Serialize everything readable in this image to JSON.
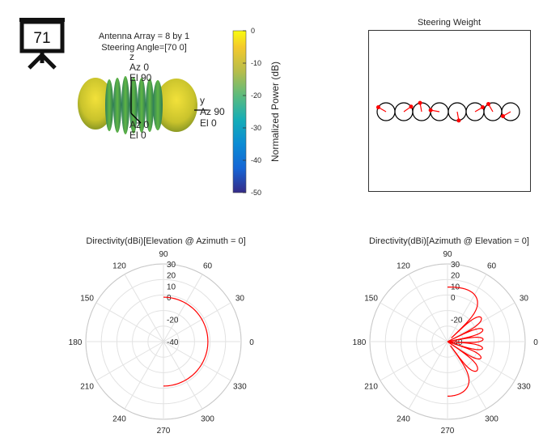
{
  "badge": {
    "number": "71",
    "icon": "presentation-board-icon"
  },
  "array_info": {
    "line1": "Antenna Array = 8 by 1",
    "line2": "Steering Angle=[70 0]"
  },
  "pattern3d": {
    "z_label": "z",
    "z_az": "Az 0",
    "z_el": "El 90",
    "y_label": "y",
    "y_az": "Az 90",
    "y_el": "El 0",
    "x_az": "Az 0",
    "x_el": "El 0"
  },
  "colorbar": {
    "label": "Normalized Power (dB)",
    "ticks": [
      "0",
      "-10",
      "-20",
      "-30",
      "-40",
      "-50"
    ]
  },
  "steering": {
    "title": "Steering Weight",
    "element_count": 8,
    "phases_deg": [
      150,
      35,
      100,
      170,
      280,
      30,
      120,
      210
    ]
  },
  "chart_data": [
    {
      "type": "polar",
      "title": "Directivity(dBi)[Elevation @ Azimuth = 0]",
      "angle_ticks": [
        "0",
        "30",
        "60",
        "90",
        "120",
        "150",
        "180",
        "210",
        "240",
        "270",
        "300",
        "330"
      ],
      "r_ticks": [
        "30",
        "20",
        "10",
        "0",
        "-20",
        "-40"
      ],
      "r_tick_values": [
        30,
        20,
        10,
        0,
        -20,
        -40
      ],
      "series": [
        {
          "theta_deg": [
            -90,
            -60,
            -30,
            0,
            30,
            60,
            90
          ],
          "r": [
            0,
            0,
            0,
            0,
            0,
            0,
            0
          ]
        }
      ]
    },
    {
      "type": "polar",
      "title": "Directivity(dBi)[Azimuth @ Elevation = 0]",
      "angle_ticks": [
        "0",
        "30",
        "60",
        "90",
        "120",
        "150",
        "180",
        "210",
        "240",
        "270",
        "300",
        "330"
      ],
      "r_ticks": [
        "30",
        "20",
        "10",
        "0",
        "-20",
        "-40"
      ],
      "r_tick_values": [
        30,
        20,
        10,
        0,
        -20,
        -40
      ],
      "series": [
        {
          "main_lobe_az_deg": 70,
          "peak_dbi": 10,
          "floor_dbi": -40,
          "elements": 8
        }
      ]
    }
  ]
}
